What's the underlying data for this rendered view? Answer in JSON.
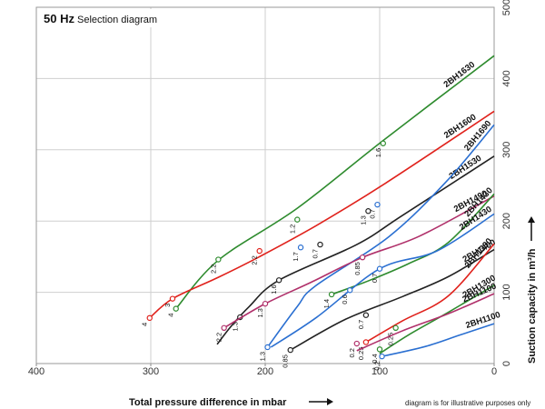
{
  "chart_data": {
    "type": "line",
    "title": "50 Hz",
    "subtitle": "Selection diagram",
    "xlabel": "Total pressure difference in mbar",
    "ylabel": "Suction capacity in m³/h",
    "xlim": [
      400,
      0
    ],
    "ylim": [
      0,
      500
    ],
    "x_ticks": [
      400,
      300,
      200,
      100,
      0
    ],
    "y_ticks": [
      0,
      100,
      200,
      300,
      400,
      500
    ],
    "grid": true,
    "note": "diagram is for illustrative purposes only",
    "colors": {
      "green": "#2e8b2e",
      "red": "#e0221c",
      "blue": "#2a6fd1",
      "black": "#222222",
      "magenta": "#b0306a"
    },
    "series": [
      {
        "name": "2BH1630",
        "color": "#2e8b2e",
        "x": [
          278,
          241,
          172,
          97,
          0
        ],
        "y": [
          77,
          145,
          218,
          313,
          432
        ],
        "points": [
          {
            "x": 278,
            "y": 77,
            "label": "4"
          },
          {
            "x": 241,
            "y": 146,
            "label": "2.2"
          },
          {
            "x": 172,
            "y": 202,
            "label": "1.2"
          },
          {
            "x": 97,
            "y": 309,
            "label": "1.6"
          }
        ]
      },
      {
        "name": "2BH1600",
        "color": "#e0221c",
        "x": [
          301,
          281,
          241,
          205,
          155,
          95,
          0
        ],
        "y": [
          64,
          91,
          121,
          150,
          194,
          253,
          354
        ],
        "points": [
          {
            "x": 301,
            "y": 64,
            "label": "4"
          },
          {
            "x": 281,
            "y": 91,
            "label": "3"
          },
          {
            "x": 205,
            "y": 158,
            "label": "2.2"
          }
        ]
      },
      {
        "name": "2BH1530",
        "color": "#222222",
        "x": [
          242,
          230,
          214,
          188,
          120,
          80,
          0
        ],
        "y": [
          27,
          52,
          80,
          117,
          167,
          208,
          291
        ],
        "points": [
          {
            "x": 222,
            "y": 65,
            "label": "1.3"
          },
          {
            "x": 188,
            "y": 117,
            "label": "1.6"
          },
          {
            "x": 152,
            "y": 167,
            "label": "0.7"
          },
          {
            "x": 110,
            "y": 214,
            "label": "1.3"
          }
        ]
      },
      {
        "name": "2BH1690",
        "color": "#2a6fd1",
        "x": [
          198,
          172,
          156,
          92,
          42,
          0
        ],
        "y": [
          23,
          80,
          109,
          178,
          255,
          335
        ],
        "points": [
          {
            "x": 169,
            "y": 163,
            "label": "1.7"
          },
          {
            "x": 102,
            "y": 223,
            "label": "0.7"
          }
        ]
      },
      {
        "name": "2BH1490",
        "color": "#b0306a",
        "x": [
          236,
          200,
          160,
          115,
          65,
          0
        ],
        "y": [
          50,
          84,
          114,
          149,
          179,
          235
        ],
        "points": [
          {
            "x": 236,
            "y": 50,
            "label": "2.2"
          },
          {
            "x": 200,
            "y": 84,
            "label": "1.3"
          },
          {
            "x": 115,
            "y": 149,
            "label": "0.85"
          }
        ]
      },
      {
        "name": "2BH1430",
        "color": "#2e8b2e",
        "x": [
          142,
          110,
          75,
          40,
          0
        ],
        "y": [
          97,
          116,
          140,
          170,
          238
        ],
        "points": [
          {
            "x": 142,
            "y": 97,
            "label": "1.4"
          }
        ]
      },
      {
        "name": "2BH1430",
        "color": "#2a6fd1",
        "x": [
          195,
          155,
          100,
          50,
          0
        ],
        "y": [
          23,
          65,
          133,
          158,
          210
        ],
        "points": [
          {
            "x": 198,
            "y": 23,
            "label": "1.3"
          },
          {
            "x": 126,
            "y": 103,
            "label": "0.6"
          },
          {
            "x": 100,
            "y": 133,
            "label": "0.7"
          }
        ]
      },
      {
        "name": "2BH1400",
        "color": "#222222",
        "x": [
          178,
          130,
          80,
          40,
          0
        ],
        "y": [
          19,
          62,
          94,
          122,
          160
        ],
        "points": [
          {
            "x": 178,
            "y": 19,
            "label": "0.85"
          },
          {
            "x": 112,
            "y": 68,
            "label": "0.7"
          }
        ]
      },
      {
        "name": "2BH1330",
        "color": "#e0221c",
        "x": [
          112,
          80,
          40,
          0
        ],
        "y": [
          30,
          60,
          95,
          168
        ],
        "points": [
          {
            "x": 112,
            "y": 30,
            "label": "0.25"
          }
        ]
      },
      {
        "name": "2BH1300",
        "color": "#2e8b2e",
        "x": [
          100,
          75,
          40,
          0
        ],
        "y": [
          14,
          40,
          72,
          110
        ],
        "points": [
          {
            "x": 100,
            "y": 20,
            "label": "0.4"
          },
          {
            "x": 86,
            "y": 50,
            "label": "0.25"
          }
        ]
      },
      {
        "name": "2BH1100",
        "color": "#b0306a",
        "x": [
          120,
          80,
          40,
          0
        ],
        "y": [
          18,
          46,
          70,
          98
        ],
        "points": [
          {
            "x": 120,
            "y": 28,
            "label": "0.2"
          }
        ]
      },
      {
        "name": "2BH1100",
        "color": "#2a6fd1",
        "x": [
          98,
          60,
          30,
          0
        ],
        "y": [
          10,
          24,
          40,
          56
        ],
        "points": [
          {
            "x": 98,
            "y": 10,
            "label": "0.2"
          }
        ]
      }
    ]
  }
}
